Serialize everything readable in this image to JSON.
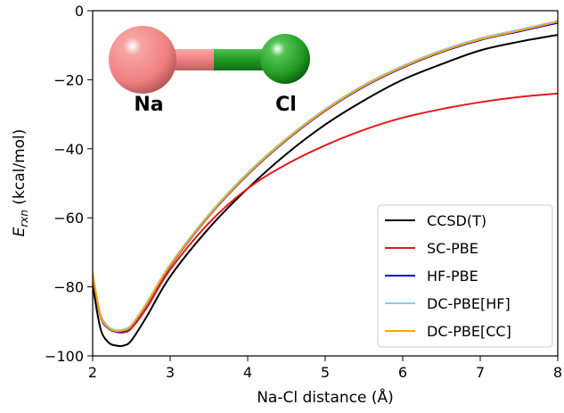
{
  "chart_data": {
    "type": "line",
    "title": "",
    "xlabel": "Na-Cl distance (Å)",
    "ylabel_main": "E",
    "ylabel_sub": "rxn",
    "ylabel_unit": " (kcal/mol)",
    "xlim": [
      2,
      8
    ],
    "ylim": [
      -100,
      0
    ],
    "xticks": [
      "2",
      "3",
      "4",
      "5",
      "6",
      "7",
      "8"
    ],
    "yticks": [
      "0",
      "−20",
      "−40",
      "−60",
      "−80",
      "−100"
    ],
    "grid": false,
    "legend_position": "lower-right",
    "x": [
      2.0,
      2.1,
      2.2,
      2.3,
      2.4,
      2.5,
      2.7,
      3.0,
      3.5,
      4.0,
      4.5,
      5.0,
      5.5,
      6.0,
      6.5,
      7.0,
      7.5,
      8.0
    ],
    "series": [
      {
        "name": "CCSD(T)",
        "color": "#000000",
        "values": [
          -79.5,
          -92.0,
          -96.0,
          -97.0,
          -97.0,
          -95.5,
          -88.5,
          -77.0,
          -63.0,
          -51.5,
          -41.5,
          -33.0,
          -26.0,
          -20.0,
          -15.5,
          -11.5,
          -9.0,
          -7.0
        ]
      },
      {
        "name": "SC-PBE",
        "color": "#e41a1c",
        "values": [
          -77.5,
          -88.0,
          -91.5,
          -93.0,
          -93.2,
          -92.0,
          -86.0,
          -75.0,
          -61.5,
          -51.5,
          -44.5,
          -39.0,
          -34.5,
          -31.0,
          -28.5,
          -26.5,
          -25.0,
          -24.0
        ]
      },
      {
        "name": "HF-PBE",
        "color": "#0000cc",
        "values": [
          -76.5,
          -88.5,
          -92.0,
          -93.0,
          -92.8,
          -91.5,
          -85.0,
          -74.0,
          -59.5,
          -47.5,
          -37.5,
          -29.0,
          -22.0,
          -16.5,
          -12.0,
          -8.5,
          -6.0,
          -3.5
        ]
      },
      {
        "name": "DC-PBE[HF]",
        "color": "#87ceeb",
        "values": [
          -76.0,
          -88.0,
          -91.5,
          -92.5,
          -92.3,
          -91.0,
          -84.5,
          -73.5,
          -59.0,
          -47.0,
          -37.0,
          -28.5,
          -21.5,
          -16.0,
          -11.5,
          -8.0,
          -5.5,
          -3.0
        ]
      },
      {
        "name": "DC-PBE[CC]",
        "color": "#ffa500",
        "values": [
          -76.2,
          -88.2,
          -91.8,
          -92.8,
          -92.6,
          -91.3,
          -84.8,
          -73.8,
          -59.3,
          -47.3,
          -37.3,
          -28.8,
          -21.8,
          -16.3,
          -11.8,
          -8.3,
          -5.8,
          -3.2
        ]
      }
    ]
  },
  "molecule": {
    "atom1": "Na",
    "atom2": "Cl",
    "atom1_color": "#f08080",
    "atom2_color": "#2e9e2e"
  }
}
